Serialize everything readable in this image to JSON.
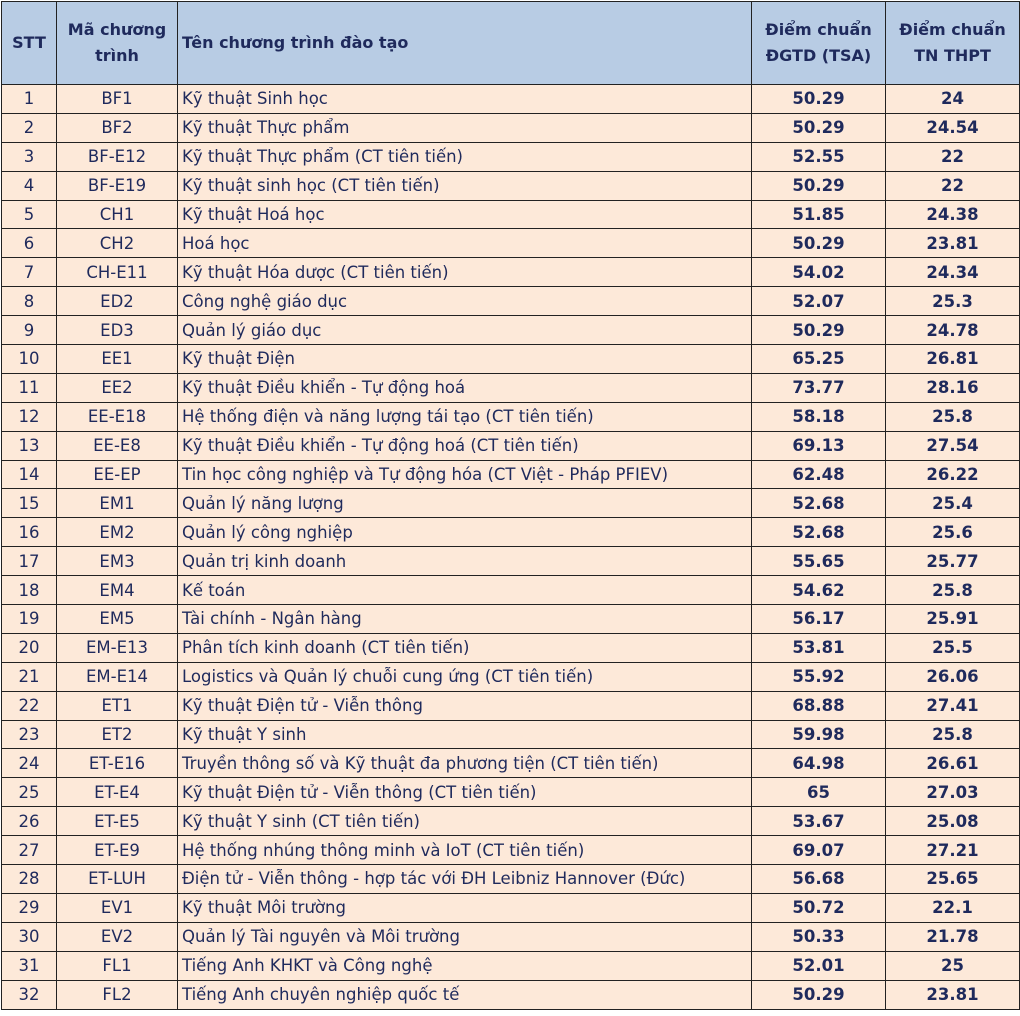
{
  "table": {
    "header": [
      "STT",
      "Mã chương trình",
      "Tên chương trình đào tạo",
      "Điểm chuẩn ĐGTD (TSA)",
      "Điểm chuẩn TN THPT"
    ],
    "rows": [
      [
        1,
        "BF1",
        "Kỹ thuật Sinh học",
        50.29,
        24
      ],
      [
        2,
        "BF2",
        "Kỹ thuật Thực phẩm",
        50.29,
        24.54
      ],
      [
        3,
        "BF-E12",
        "Kỹ thuật Thực phẩm (CT tiên tiến)",
        52.55,
        22
      ],
      [
        4,
        "BF-E19",
        "Kỹ thuật sinh học (CT tiên tiến)",
        50.29,
        22
      ],
      [
        5,
        "CH1",
        "Kỹ thuật Hoá học",
        51.85,
        24.38
      ],
      [
        6,
        "CH2",
        "Hoá học",
        50.29,
        23.81
      ],
      [
        7,
        "CH-E11",
        "Kỹ thuật Hóa dược (CT tiên tiến)",
        54.02,
        24.34
      ],
      [
        8,
        "ED2",
        "Công nghệ giáo dục",
        52.07,
        25.3
      ],
      [
        9,
        "ED3",
        "Quản lý giáo dục",
        50.29,
        24.78
      ],
      [
        10,
        "EE1",
        "Kỹ thuật Điện",
        65.25,
        26.81
      ],
      [
        11,
        "EE2",
        "Kỹ thuật Điều khiển - Tự động hoá",
        73.77,
        28.16
      ],
      [
        12,
        "EE-E18",
        "Hệ thống điện và năng lượng tái tạo (CT tiên tiến)",
        58.18,
        25.8
      ],
      [
        13,
        "EE-E8",
        "Kỹ thuật Điều khiển - Tự động hoá (CT tiên tiến)",
        69.13,
        27.54
      ],
      [
        14,
        "EE-EP",
        "Tin học công nghiệp và Tự động hóa (CT Việt - Pháp PFIEV)",
        62.48,
        26.22
      ],
      [
        15,
        "EM1",
        "Quản lý năng lượng",
        52.68,
        25.4
      ],
      [
        16,
        "EM2",
        "Quản lý công nghiệp",
        52.68,
        25.6
      ],
      [
        17,
        "EM3",
        "Quản trị kinh doanh",
        55.65,
        25.77
      ],
      [
        18,
        "EM4",
        "Kế toán",
        54.62,
        25.8
      ],
      [
        19,
        "EM5",
        "Tài chính - Ngân hàng",
        56.17,
        25.91
      ],
      [
        20,
        "EM-E13",
        "Phân tích kinh doanh (CT tiên tiến)",
        53.81,
        25.5
      ],
      [
        21,
        "EM-E14",
        "Logistics và Quản lý chuỗi cung ứng (CT tiên tiến)",
        55.92,
        26.06
      ],
      [
        22,
        "ET1",
        "Kỹ thuật Điện tử - Viễn thông",
        68.88,
        27.41
      ],
      [
        23,
        "ET2",
        "Kỹ thuật Y sinh",
        59.98,
        25.8
      ],
      [
        24,
        "ET-E16",
        "Truyền thông số và Kỹ thuật đa phương tiện (CT tiên tiến)",
        64.98,
        26.61
      ],
      [
        25,
        "ET-E4",
        "Kỹ thuật Điện tử - Viễn thông (CT tiên tiến)",
        65,
        27.03
      ],
      [
        26,
        "ET-E5",
        "Kỹ thuật Y sinh (CT tiên tiến)",
        53.67,
        25.08
      ],
      [
        27,
        "ET-E9",
        "Hệ thống nhúng thông minh và IoT (CT tiên tiến)",
        69.07,
        27.21
      ],
      [
        28,
        "ET-LUH",
        "Điện tử - Viễn thông - hợp tác với ĐH Leibniz Hannover (Đức)",
        56.68,
        25.65
      ],
      [
        29,
        "EV1",
        "Kỹ thuật Môi trường",
        50.72,
        22.1
      ],
      [
        30,
        "EV2",
        "Quản lý Tài nguyên và Môi trường",
        50.33,
        21.78
      ],
      [
        31,
        "FL1",
        "Tiếng Anh KHKT và Công nghệ",
        52.01,
        25
      ],
      [
        32,
        "FL2",
        "Tiếng Anh chuyên nghiệp quốc tế",
        50.29,
        23.81
      ]
    ]
  }
}
